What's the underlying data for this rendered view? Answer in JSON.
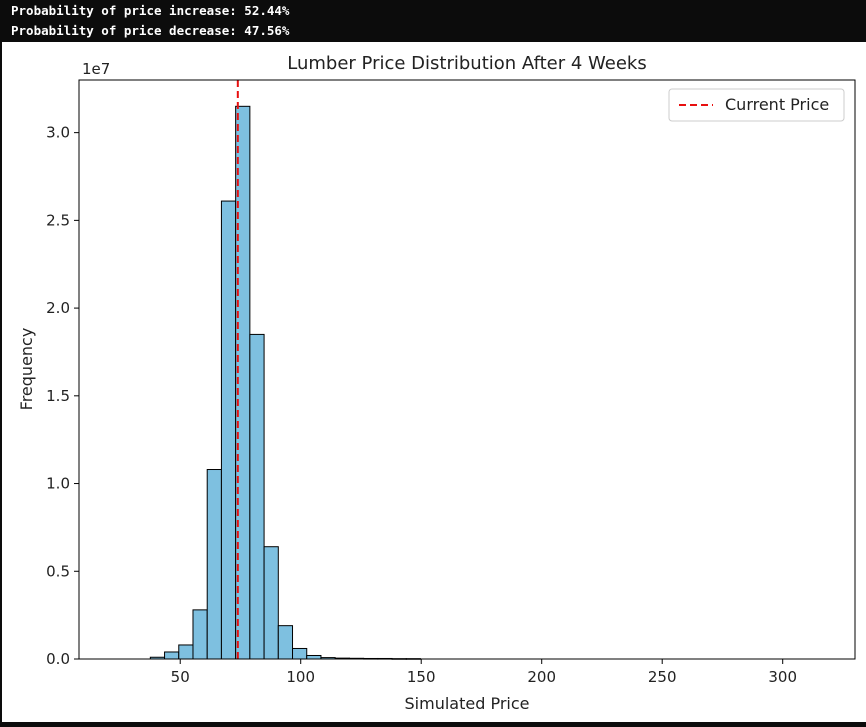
{
  "console": {
    "line1": "Probability of price increase: 52.44%",
    "line2": "Probability of price decrease: 47.56%"
  },
  "chart_data": {
    "type": "bar",
    "title": "Lumber Price Distribution After 4 Weeks",
    "xlabel": "Simulated Price",
    "ylabel": "Frequency",
    "y_offset_label": "1e7",
    "xlim": [
      8,
      330
    ],
    "ylim": [
      0,
      3.3
    ],
    "y_scale_multiplier": 10000000,
    "x_ticks": [
      50,
      100,
      150,
      200,
      250,
      300
    ],
    "y_ticks": [
      0,
      0.5,
      1.0,
      1.5,
      2.0,
      2.5,
      3.0
    ],
    "y_tick_labels": [
      "0.0",
      "0.5",
      "1.0",
      "1.5",
      "2.0",
      "2.5",
      "3.0"
    ],
    "bin_width": 5.9,
    "bins": [
      {
        "x0": 37.6,
        "value": 0.01
      },
      {
        "x0": 43.5,
        "value": 0.04
      },
      {
        "x0": 49.4,
        "value": 0.08
      },
      {
        "x0": 55.3,
        "value": 0.28
      },
      {
        "x0": 61.2,
        "value": 1.08
      },
      {
        "x0": 67.1,
        "value": 2.61
      },
      {
        "x0": 73.0,
        "value": 3.15
      },
      {
        "x0": 78.9,
        "value": 1.85
      },
      {
        "x0": 84.8,
        "value": 0.64
      },
      {
        "x0": 90.7,
        "value": 0.19
      },
      {
        "x0": 96.6,
        "value": 0.06
      },
      {
        "x0": 102.5,
        "value": 0.02
      },
      {
        "x0": 108.4,
        "value": 0.008
      },
      {
        "x0": 114.3,
        "value": 0.005
      },
      {
        "x0": 120.2,
        "value": 0.004
      },
      {
        "x0": 126.1,
        "value": 0.003
      },
      {
        "x0": 132.0,
        "value": 0.003
      },
      {
        "x0": 137.9,
        "value": 0.002
      },
      {
        "x0": 143.8,
        "value": 0.002
      }
    ],
    "current_price": 73.9,
    "bar_color": "#7ec0e0",
    "bar_edge_color": "#000000",
    "line_color": "#e81010",
    "legend": {
      "label": "Current Price",
      "position": "top-right"
    },
    "grid": false
  }
}
